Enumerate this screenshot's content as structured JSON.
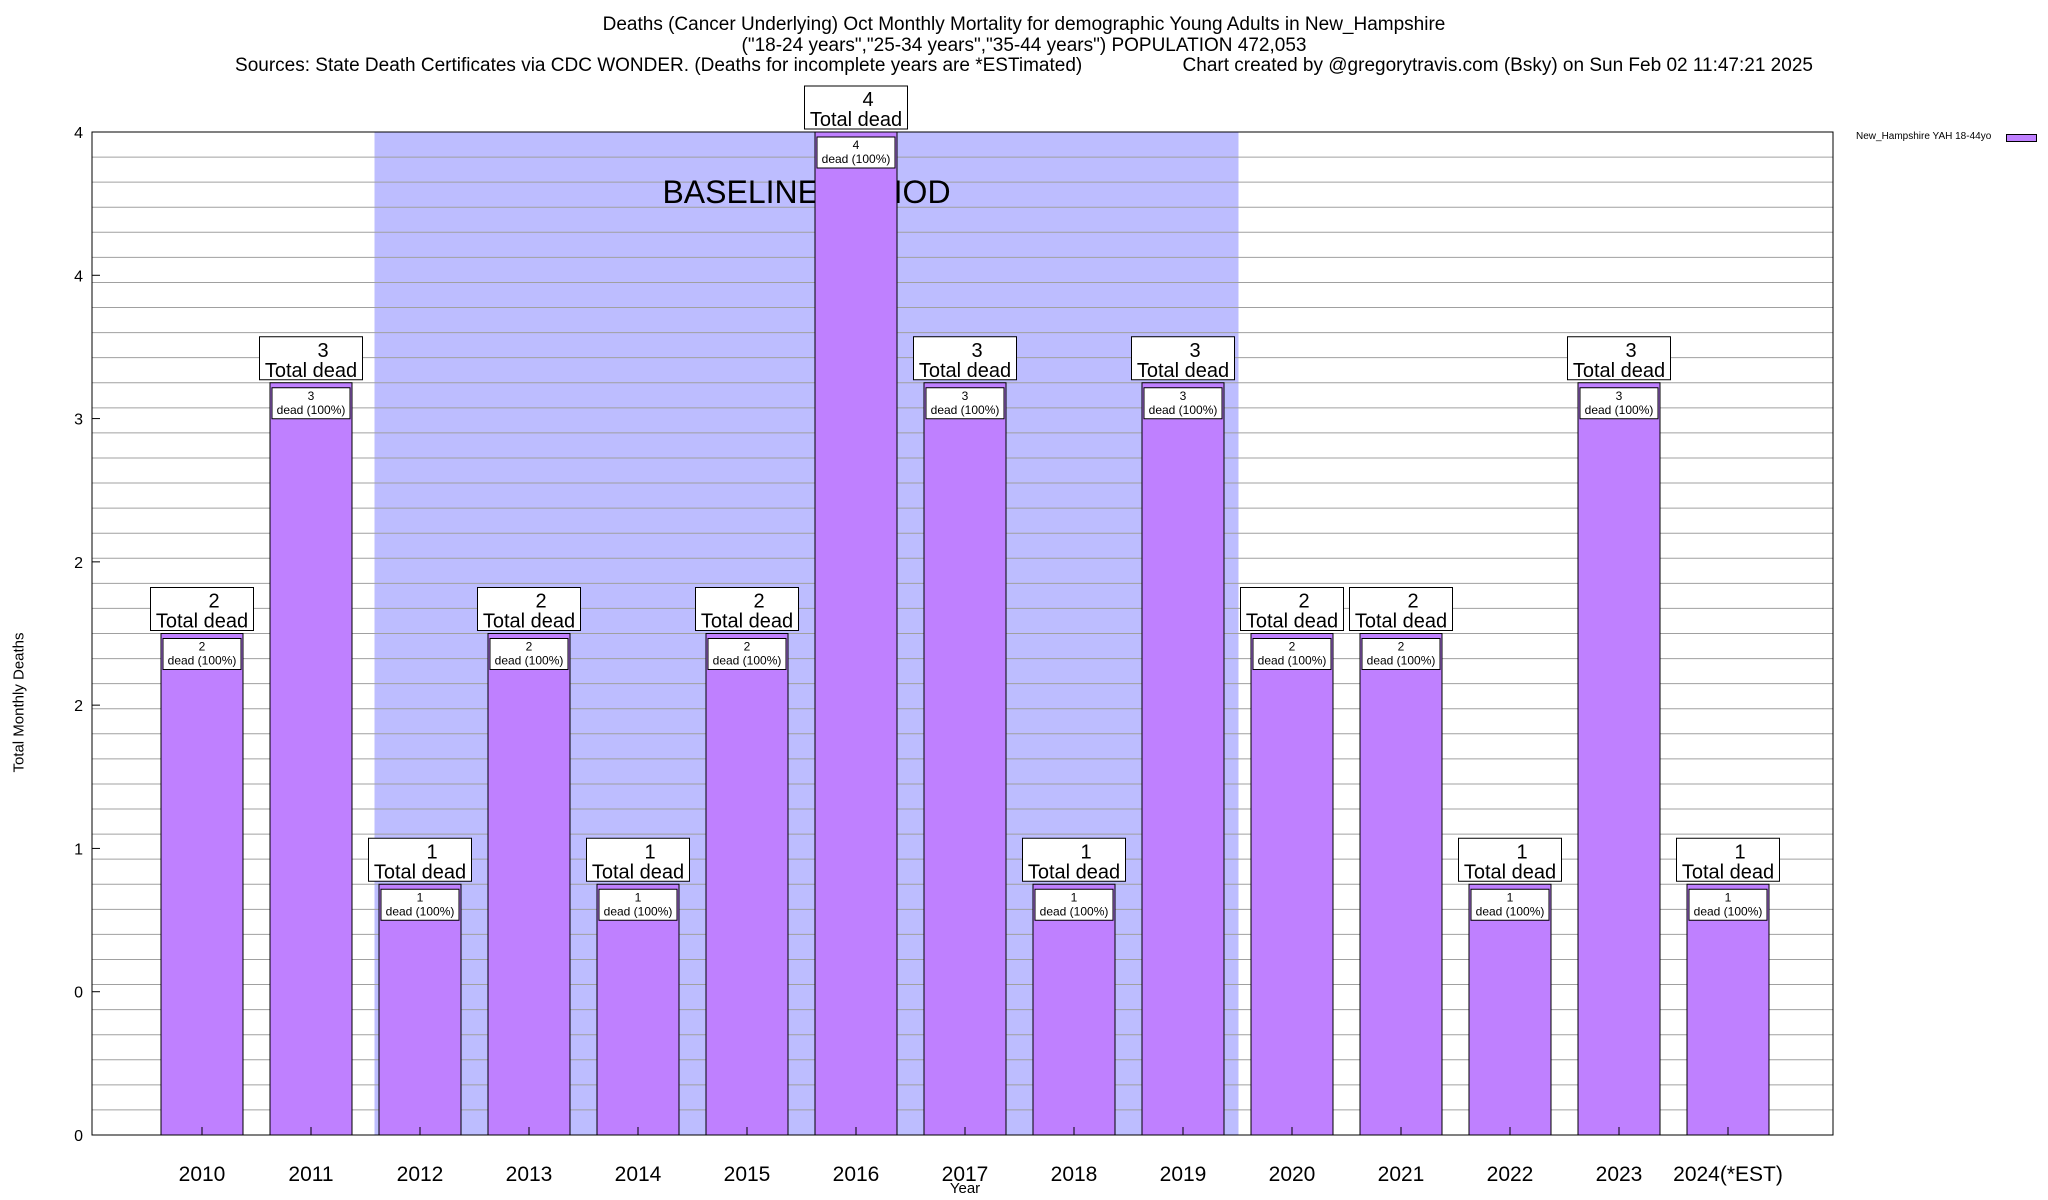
{
  "chart_data": {
    "type": "bar",
    "title": "Deaths (Cancer Underlying) Oct Monthly Mortality for demographic Young Adults in New_Hampshire",
    "subtitle": "(\"18-24 years\",\"25-34 years\",\"35-44 years\") POPULATION 472,053",
    "source": "Sources: State Death Certificates via CDC WONDER. (Deaths for incomplete years are *ESTimated)",
    "credit": "Chart created by @gregorytravis.com (Bsky) on Sun Feb 02 11:47:21 2025",
    "xlabel": "Year",
    "ylabel": "Total Monthly Deaths",
    "categories": [
      "2010",
      "2011",
      "2012",
      "2013",
      "2014",
      "2015",
      "2016",
      "2017",
      "2018",
      "2019",
      "2020",
      "2021",
      "2022",
      "2023",
      "2024(*EST)"
    ],
    "series": [
      {
        "name": "New_Hampshire YAH 18-44yo",
        "values": [
          2,
          3,
          1,
          2,
          1,
          2,
          4,
          3,
          1,
          3,
          2,
          2,
          1,
          3,
          1
        ]
      }
    ],
    "total_label": "Total dead",
    "bar_label_suffix": "dead (100%)",
    "ytick_labels": [
      "0",
      "0",
      "1",
      "2",
      "2",
      "3",
      "4",
      "4"
    ],
    "ylim": [
      0,
      4
    ],
    "baseline_label": "BASELINE PERIOD",
    "baseline_range": [
      "2012",
      "2019"
    ],
    "grid": true,
    "legend_position": "top-right, outside plot",
    "colors": {
      "bar": "#bf80ff",
      "baseline": "#bdbdff",
      "grid": "#a0a0a0"
    }
  }
}
